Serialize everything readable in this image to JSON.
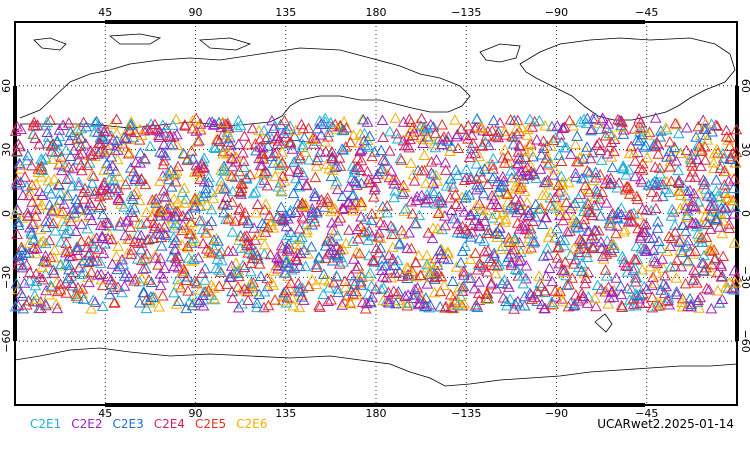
{
  "map": {
    "top_lon_labels": [
      "45",
      "90",
      "135",
      "180",
      "−135",
      "−90",
      "−45"
    ],
    "bottom_lon_labels": [
      "45",
      "90",
      "135",
      "180",
      "−135",
      "−90",
      "−45"
    ],
    "lat_labels_left": [
      "60",
      "30",
      "0",
      "−30",
      "−60"
    ],
    "lat_labels_right": [
      "60",
      "30",
      "0",
      "−30",
      "−60"
    ],
    "lat_range": [
      -90,
      90
    ],
    "lon_range": [
      0,
      360
    ],
    "grid": true,
    "marker": "open-triangle"
  },
  "legend": [
    {
      "label": "C2E1",
      "color": "#1fb0d8"
    },
    {
      "label": "C2E2",
      "color": "#a020c0"
    },
    {
      "label": "C2E3",
      "color": "#1f6fd0"
    },
    {
      "label": "C2E4",
      "color": "#d02060"
    },
    {
      "label": "C2E5",
      "color": "#e03020"
    },
    {
      "label": "C2E6",
      "color": "#f0b000"
    }
  ],
  "stamp": "UCARwet2.2025-01-14"
}
